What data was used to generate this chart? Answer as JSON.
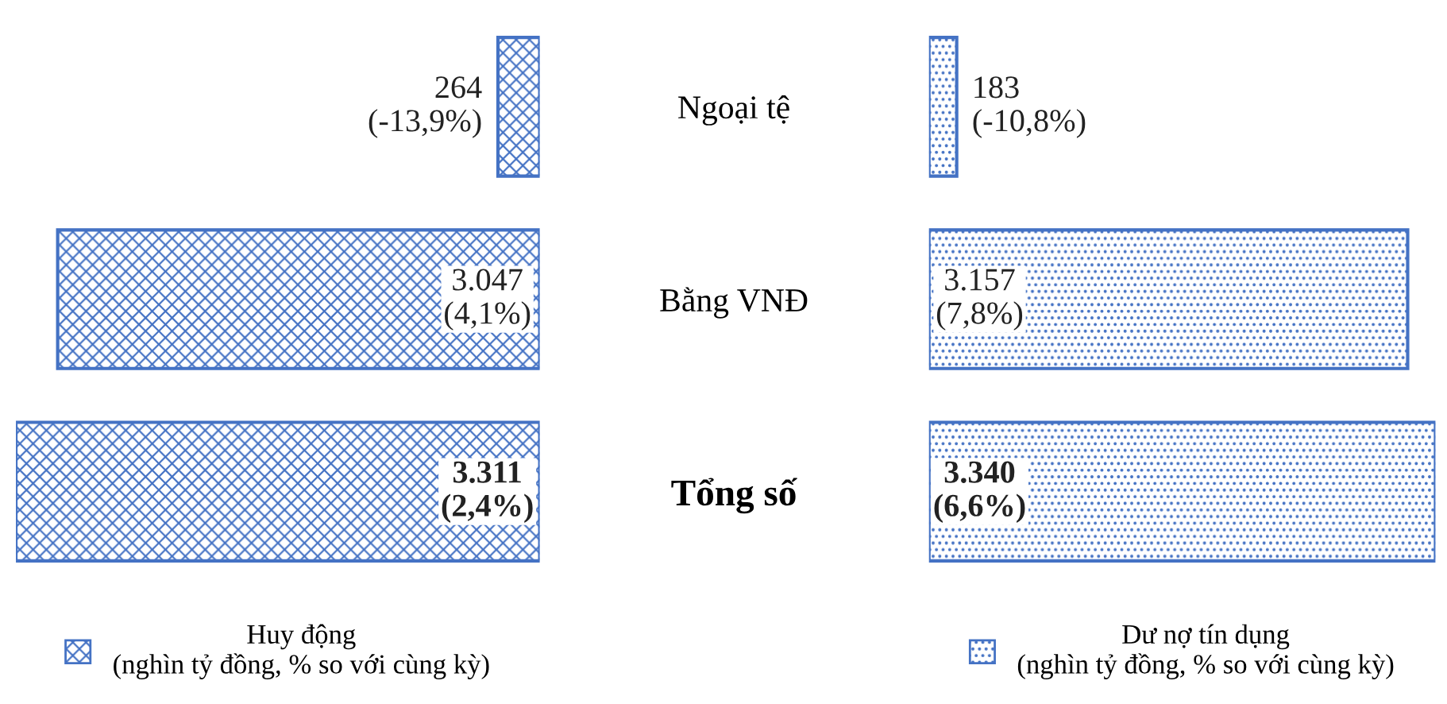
{
  "chart_data": [
    {
      "type": "bar",
      "orientation": "horizontal",
      "categories": [
        "Ngoại tệ",
        "Bằng VNĐ",
        "Tổng số"
      ],
      "tick_labels": "y",
      "legend": "bottom",
      "series": [
        {
          "name": "Huy động\n(nghìn tỷ đồng, % so với cùng kỳ)",
          "color": "#4472c4",
          "values": [
            264,
            3047,
            3311
          ],
          "value_labels": [
            "264\n(-13,9%)",
            "3.047\n(4,1%)",
            "3.311\n(2,4%)"
          ]
        }
      ]
    },
    {
      "type": "bar",
      "orientation": "horizontal",
      "categories": [
        null,
        null,
        null
      ],
      "tick_labels": false,
      "legend": "bottom",
      "series": [
        {
          "name": "Dư nợ tín dụng\n(nghìn tỷ đồng, % so với cùng kỳ)",
          "color": "#4472c4",
          "values": [
            183,
            3157,
            3340
          ],
          "value_labels": [
            "183\n(-10,8%)",
            "3.157\n(7,8%)",
            "3.340\n(6,6%)"
          ]
        }
      ]
    }
  ]
}
